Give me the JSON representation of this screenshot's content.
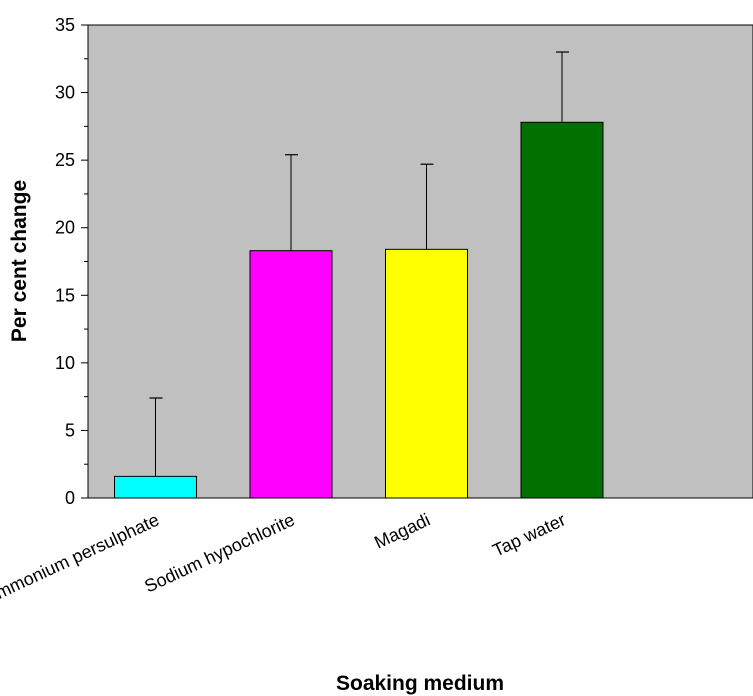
{
  "chart_data": {
    "type": "bar",
    "title": "",
    "xlabel": "Soaking medium",
    "ylabel": "Per cent change",
    "categories": [
      "Ammonium persulphate",
      "Sodium hypochlorite",
      "Magadi",
      "Tap water"
    ],
    "values": [
      1.6,
      18.3,
      18.4,
      27.8
    ],
    "error_upper": [
      5.8,
      7.1,
      6.3,
      5.2
    ],
    "colors": [
      "#00ffff",
      "#ff00ff",
      "#ffff00",
      "#007000"
    ],
    "ylim": [
      0,
      35
    ],
    "yticks": [
      0,
      5,
      10,
      15,
      20,
      25,
      30,
      35
    ],
    "plot_background": "#c0c0c0",
    "grid": false,
    "legend": "none"
  }
}
